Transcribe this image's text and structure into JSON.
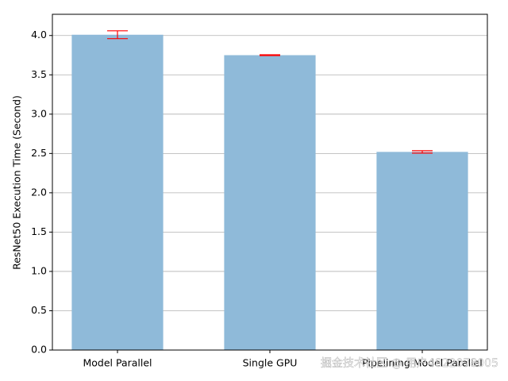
{
  "chart_data": {
    "type": "bar",
    "y_label": "ResNet50 Execution Time (Second)",
    "categories": [
      "Model Parallel",
      "Single GPU",
      "Pipelining Model Parallel"
    ],
    "values": [
      4.01,
      3.75,
      2.52
    ],
    "errors": [
      0.05,
      0.005,
      0.015
    ],
    "color": "#8fbad9",
    "error_color": "#ff0000",
    "ylim": [
      0,
      4.27
    ],
    "yticks": [
      {
        "value": 0,
        "label": "0.0"
      },
      0.5,
      {
        "value": 1,
        "label": "1.0"
      },
      1.5,
      {
        "value": 2,
        "label": "2.0"
      },
      2.5,
      {
        "value": 3,
        "label": "3.0"
      },
      3.5,
      {
        "value": 4,
        "label": "4.0"
      }
    ],
    "grid": true
  },
  "watermark": "掘金技术社区 @ 用户4822078005"
}
